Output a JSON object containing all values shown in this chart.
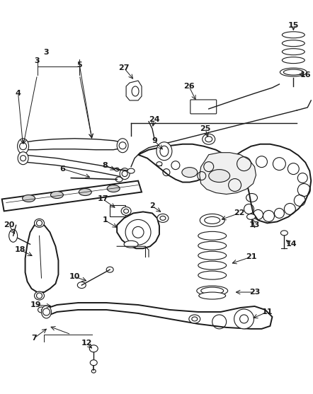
{
  "bg_color": "#ffffff",
  "line_color": "#1a1a1a",
  "fig_width": 4.42,
  "fig_height": 5.57,
  "dpi": 100
}
